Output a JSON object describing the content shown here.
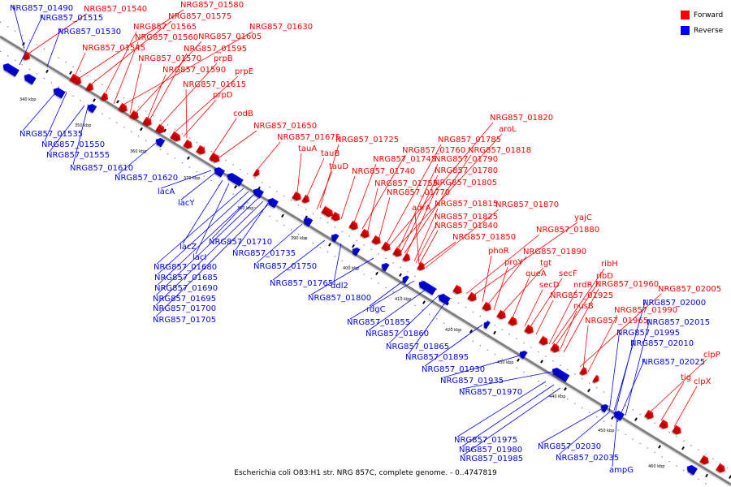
{
  "legend": {
    "forward": {
      "label": "Forward",
      "color": "#ff0000"
    },
    "reverse": {
      "label": "Reverse",
      "color": "#0000ff"
    }
  },
  "caption": "Escherichia coli O83:H1 str. NRG 857C, complete genome. - 0..4747819",
  "backbone_color": "#808080",
  "tick_labels": [
    "340 kbp",
    "350 kbp",
    "360 kbp",
    "370 kbp",
    "380 kbp",
    "390 kbp",
    "400 kbp",
    "410 kbp",
    "420 kbp",
    "430 kbp",
    "440 kbp",
    "450 kbp",
    "460 kbp"
  ],
  "forward_genes": [
    "NRG857_01540",
    "NRG857_01580",
    "NRG857_01575",
    "NRG857_01565",
    "NRG857_01630",
    "NRG857_01560",
    "NRG857_01605",
    "NRG857_01545",
    "NRG857_01595",
    "NRG857_01570",
    "prpB",
    "NRG857_01590",
    "prpE",
    "NRG857_01615",
    "prpD",
    "codB",
    "NRG857_01650",
    "NRG857_01675",
    "tauA",
    "tauB",
    "NRG857_01725",
    "tauD",
    "NRG857_01745",
    "NRG857_01760",
    "NRG857_01740",
    "NRG857_01755",
    "NRG857_01770",
    "NRG857_01820",
    "aroL",
    "NRG857_01785",
    "NRG857_01818",
    "NRG857_01790",
    "NRG857_01780",
    "NRG857_01805",
    "adrA",
    "NRG857_01815",
    "NRG857_01870",
    "NRG857_01825",
    "NRG857_01840",
    "NRG857_01850",
    "yajC",
    "NRG857_01880",
    "phoR",
    "NRG857_01890",
    "proY",
    "tgt",
    "queA",
    "secF",
    "ribH",
    "secD",
    "ribD",
    "nrdR",
    "NRG857_01960",
    "NRG857_01925",
    "NRG857_02005",
    "nusB",
    "NRG857_01990",
    "NRG857_01965",
    "clpP",
    "tig",
    "clpX"
  ],
  "reverse_genes": [
    "NRG857_01490",
    "NRG857_01515",
    "NRG857_01530",
    "NRG857_01535",
    "NRG857_01550",
    "NRG857_01555",
    "NRG857_01610",
    "NRG857_01620",
    "lacA",
    "lacY",
    "lacZ",
    "lacI",
    "NRG857_01710",
    "NRG857_01735",
    "NRG857_01680",
    "NRG857_01685",
    "NRG857_01690",
    "NRG857_01695",
    "NRG857_01700",
    "NRG857_01705",
    "NRG857_01750",
    "NRG857_01765",
    "ddl2",
    "NRG857_01800",
    "rdgC",
    "NRG857_01855",
    "NRG857_01860",
    "NRG857_01865",
    "NRG857_01895",
    "NRG857_01930",
    "NRG857_01935",
    "NRG857_01970",
    "NRG857_02000",
    "NRG857_02015",
    "NRG857_01995",
    "NRG857_02010",
    "NRG857_02025",
    "NRG857_01975",
    "NRG857_01980",
    "NRG857_01985",
    "NRG857_02030",
    "NRG857_02035",
    "ampG"
  ]
}
